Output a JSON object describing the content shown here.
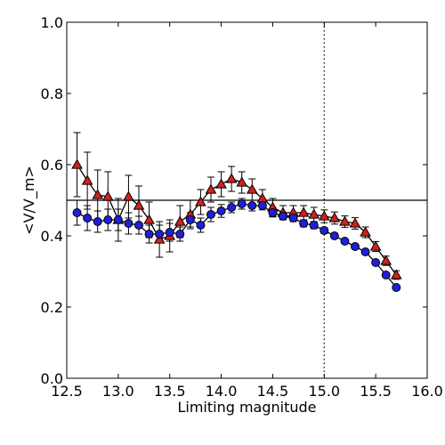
{
  "chart_data": {
    "type": "scatter",
    "xlabel": "Limiting magnitude",
    "ylabel": "<V/V_m>",
    "xlim": [
      12.5,
      16.0
    ],
    "ylim": [
      0.0,
      1.0
    ],
    "xticks": [
      "12.5",
      "13.0",
      "13.5",
      "14.0",
      "14.5",
      "15.0",
      "15.5",
      "16.0"
    ],
    "yticks": [
      "0.0",
      "0.2",
      "0.4",
      "0.6",
      "0.8",
      "1.0"
    ],
    "grid": false,
    "reference_lines": [
      {
        "orientation": "horizontal",
        "value": 0.5,
        "style": "solid"
      },
      {
        "orientation": "vertical",
        "value": 15.0,
        "style": "dotted"
      }
    ],
    "series": [
      {
        "marker": "triangle",
        "color": "#d61f1f",
        "x": [
          12.6,
          12.7,
          12.8,
          12.9,
          13.0,
          13.1,
          13.2,
          13.3,
          13.4,
          13.5,
          13.6,
          13.7,
          13.8,
          13.9,
          14.0,
          14.1,
          14.2,
          14.3,
          14.4,
          14.5,
          14.6,
          14.7,
          14.8,
          14.9,
          15.0,
          15.1,
          15.2,
          15.3,
          15.4,
          15.5,
          15.6,
          15.7
        ],
        "y": [
          0.6,
          0.555,
          0.515,
          0.51,
          0.445,
          0.51,
          0.485,
          0.445,
          0.39,
          0.4,
          0.44,
          0.46,
          0.495,
          0.53,
          0.545,
          0.56,
          0.55,
          0.53,
          0.505,
          0.48,
          0.465,
          0.465,
          0.465,
          0.46,
          0.455,
          0.45,
          0.44,
          0.435,
          0.41,
          0.37,
          0.33,
          0.29
        ],
        "yerr": [
          0.09,
          0.08,
          0.07,
          0.07,
          0.06,
          0.06,
          0.055,
          0.05,
          0.05,
          0.045,
          0.045,
          0.04,
          0.035,
          0.035,
          0.035,
          0.035,
          0.03,
          0.03,
          0.025,
          0.025,
          0.02,
          0.02,
          0.02,
          0.02,
          0.018,
          0.017,
          0.016,
          0.016,
          0.015,
          0.014,
          0.013,
          0.012
        ]
      },
      {
        "marker": "circle",
        "color": "#1f1fd6",
        "x": [
          12.6,
          12.7,
          12.8,
          12.9,
          13.0,
          13.1,
          13.2,
          13.3,
          13.4,
          13.5,
          13.6,
          13.7,
          13.8,
          13.9,
          14.0,
          14.1,
          14.2,
          14.3,
          14.4,
          14.5,
          14.6,
          14.7,
          14.8,
          14.9,
          15.0,
          15.1,
          15.2,
          15.3,
          15.4,
          15.5,
          15.6,
          15.7
        ],
        "y": [
          0.465,
          0.45,
          0.44,
          0.445,
          0.445,
          0.435,
          0.43,
          0.405,
          0.405,
          0.41,
          0.405,
          0.445,
          0.43,
          0.46,
          0.47,
          0.48,
          0.49,
          0.485,
          0.485,
          0.465,
          0.455,
          0.45,
          0.435,
          0.43,
          0.415,
          0.4,
          0.385,
          0.37,
          0.355,
          0.325,
          0.29,
          0.255
        ],
        "yerr": [
          0.035,
          0.035,
          0.03,
          0.03,
          0.03,
          0.03,
          0.025,
          0.025,
          0.025,
          0.025,
          0.02,
          0.02,
          0.02,
          0.02,
          0.018,
          0.015,
          0.015,
          0.015,
          0.012,
          0.012,
          0.01,
          0.01,
          0.01,
          0.01,
          0.008,
          0.007,
          0.006,
          0.006,
          0.006,
          0.005,
          0.005,
          0.005
        ]
      }
    ]
  }
}
